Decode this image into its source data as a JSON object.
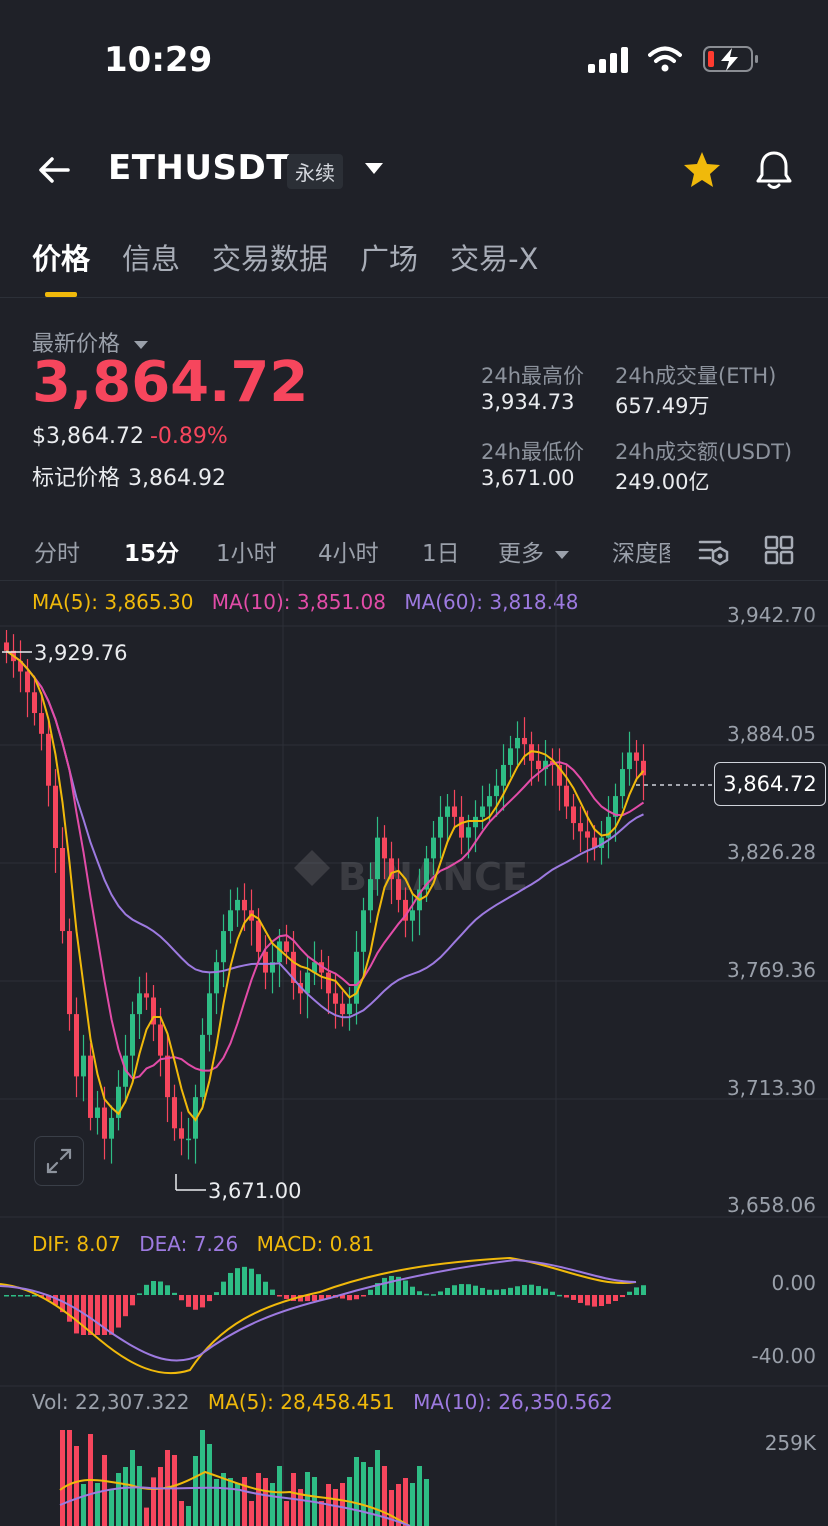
{
  "status_bar": {
    "time": "10:29"
  },
  "header": {
    "symbol": "ETHUSDT",
    "contract_tag": "永续"
  },
  "tabs": [
    {
      "label": "价格",
      "active": true
    },
    {
      "label": "信息",
      "active": false
    },
    {
      "label": "交易数据",
      "active": false
    },
    {
      "label": "广场",
      "active": false
    },
    {
      "label": "交易-X",
      "active": false
    }
  ],
  "price_section": {
    "latest_label": "最新价格",
    "latest_price": "3,864.72",
    "usd_price": "$3,864.72",
    "change_pct": "-0.89%",
    "mark_label": "标记价格",
    "mark_price": "3,864.92",
    "stats": {
      "high_label": "24h最高价",
      "high_value": "3,934.73",
      "low_label": "24h最低价",
      "low_value": "3,671.00",
      "vol_eth_label": "24h成交量(ETH)",
      "vol_eth_value": "657.49万",
      "vol_usdt_label": "24h成交额(USDT)",
      "vol_usdt_value": "249.00亿"
    }
  },
  "intervals": [
    {
      "label": "分时",
      "active": false
    },
    {
      "label": "15分",
      "active": true
    },
    {
      "label": "1小时",
      "active": false
    },
    {
      "label": "4小时",
      "active": false
    },
    {
      "label": "1日",
      "active": false
    },
    {
      "label": "更多",
      "active": false
    },
    {
      "label": "深度图",
      "active": false
    }
  ],
  "ma_legend": {
    "ma5": "MA(5): 3,865.30",
    "ma10": "MA(10): 3,851.08",
    "ma60": "MA(60): 3,818.48"
  },
  "colors": {
    "up": "#2ebd85",
    "down": "#f6465d",
    "ma5": "#f0b90b",
    "ma10": "#e24ca8",
    "ma60": "#9d7ae0",
    "accent": "#f0b90b"
  },
  "chart_data": {
    "type": "candlestick",
    "y_ticks": [
      "3,942.70",
      "3,884.05",
      "3,826.28",
      "3,769.36",
      "3,713.30",
      "3,658.06"
    ],
    "ylim": [
      3658.06,
      3942.7
    ],
    "last_price": "3,864.72",
    "high_marker": "3,929.76",
    "low_marker": "3,671.00",
    "watermark": "BINANCE",
    "close_series": [
      3925,
      3920,
      3915,
      3905,
      3895,
      3885,
      3860,
      3830,
      3790,
      3750,
      3720,
      3730,
      3700,
      3705,
      3690,
      3700,
      3715,
      3730,
      3750,
      3760,
      3758,
      3745,
      3730,
      3710,
      3695,
      3690,
      3690,
      3710,
      3740,
      3760,
      3775,
      3790,
      3800,
      3805,
      3800,
      3795,
      3780,
      3770,
      3775,
      3785,
      3780,
      3765,
      3760,
      3770,
      3775,
      3770,
      3760,
      3755,
      3750,
      3755,
      3780,
      3800,
      3815,
      3835,
      3825,
      3815,
      3805,
      3795,
      3800,
      3810,
      3825,
      3835,
      3845,
      3850,
      3845,
      3835,
      3840,
      3845,
      3850,
      3855,
      3860,
      3870,
      3878,
      3883,
      3880,
      3872,
      3868,
      3872,
      3870,
      3860,
      3850,
      3842,
      3838,
      3835,
      3830,
      3835,
      3845,
      3855,
      3868,
      3876,
      3872,
      3865
    ]
  },
  "macd": {
    "dif": "DIF: 8.07",
    "dea": "DEA: 7.26",
    "macd": "MACD: 0.81",
    "y_ticks": [
      "0.00",
      "-40.00"
    ]
  },
  "volume": {
    "vol": "Vol: 22,307.322",
    "ma5": "MA(5): 28,458.451",
    "ma10": "MA(10): 26,350.562",
    "y_tick": "259K"
  }
}
